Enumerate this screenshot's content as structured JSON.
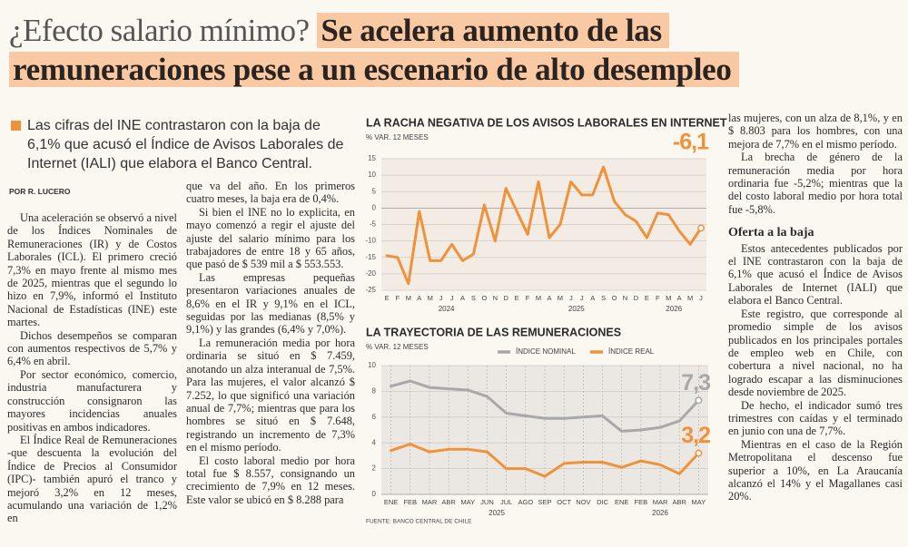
{
  "header": {
    "kicker": "¿Efecto salario mínimo?",
    "headline_lines": [
      "Se acelera aumento de las",
      "remuneraciones pese a un escenario de alto desempleo"
    ]
  },
  "lead": "Las cifras del INE contrastaron con la baja de 6,1% que acusó el Índice de Avisos Laborales de Internet (IALI) que elabora el Banco Central.",
  "byline": "POR R. LUCERO",
  "article": {
    "column_1": [
      "Una aceleración se observó a nivel de los Índices Nominales de Remuneraciones (IR) y de Costos Laborales (ICL). El primero creció 7,3% en mayo frente al mismo mes de 2025, mientras que el segundo lo hizo en 7,9%, informó el Instituto Nacional de Estadísticas (INE) este martes.",
      "Dichos desempeños se comparan con aumentos respectivos de 5,7% y 6,4% en abril.",
      "Por sector económico, comercio, industria manufacturera y construcción consignaron las mayores incidencias anuales positivas en ambos indicadores.",
      "El Índice Real de Remuneraciones -que descuenta la evolución del Índice de Precios al Consumidor (IPC)- también apuró el tranco y mejoró 3,2% en 12 meses, acumulando una variación de 1,2% en"
    ],
    "column_2": [
      "que va del año. En los primeros cuatro meses, la baja era de 0,4%.",
      "Si bien el INE no lo explicita, en mayo comenzó a regir el ajuste del ajuste del salario mínimo para los trabajadores de entre 18 y 65 años, que pasó de $ 539 mil a $ 553.553.",
      "Las empresas pequeñas presentaron variaciones anuales de 8,6% en el IR y 9,1% en el ICL, seguidas por las medianas (8,5% y 9,1%) y las grandes (6,4% y 7,0%).",
      "La remuneración media por hora ordinaria se situó en $ 7.459, anotando un alza interanual de 7,5%. Para las mujeres, el valor alcanzó $ 7.252, lo que significó una variación anual de 7,7%; mientras que para los hombres se situó en $ 7.648, registrando un incremento de 7,3% en el mismo período.",
      "El costo laboral medio por hora total fue $ 8.557, consignando un crecimiento de 7,9% en 12 meses. Este valor se ubicó en $ 8.288 para"
    ],
    "column_3": [
      "las mujeres, con un alza de 8,1%, y en $ 8.803 para los hombres, con una mejora de 7,7% en el mismo período.",
      "La brecha de género de la remuneración media por hora ordinaria fue -5,2%; mientras que la del costo laboral medio por hora total fue -5,8%."
    ],
    "subheading": "Oferta a la baja",
    "column_3_after": [
      "Estos antecedentes publicados por el INE contrastaron con la baja de 6,1% que acusó el Índice de Avisos Laborales de Internet (IALI) que elabora el Banco Central.",
      "Este registro, que corresponde al promedio simple de los avisos publicados en los principales portales de empleo web en Chile, con cobertura a nivel nacional, no ha logrado escapar a las disminuciones desde noviembre de 2025.",
      "De hecho, el indicador sumó tres trimestres con caídas y el terminado en junio con una de 7,7%.",
      "Mientras en el caso de la Región Metropolitana el descenso fue superior a 10%, en La Araucanía alcanzó el 14% y el Magallanes casi 20%."
    ]
  },
  "chart_data": [
    {
      "type": "line",
      "title": "LA RACHA NEGATIVA DE LOS AVISOS LABORALES EN INTERNET",
      "y_label": "% VAR. 12 MESES",
      "categories": [
        "E",
        "F",
        "M",
        "A",
        "M",
        "J",
        "J",
        "A",
        "S",
        "O",
        "N",
        "D",
        "E",
        "F",
        "M",
        "A",
        "M",
        "J",
        "J",
        "A",
        "S",
        "O",
        "N",
        "D",
        "E",
        "F",
        "M",
        "A",
        "M",
        "J"
      ],
      "x_group_labels": [
        "2024",
        "2025",
        "2026"
      ],
      "values": [
        -14.5,
        -15,
        -23,
        -1,
        -16,
        -16,
        -11,
        -16,
        -14,
        1,
        -10,
        6,
        -1,
        -8,
        8,
        -9,
        -5,
        8,
        4,
        4,
        12.5,
        2,
        -2,
        -4,
        -9,
        -1.5,
        -2,
        -7,
        -11,
        -6.1
      ],
      "value_labels": [
        null,
        null,
        null,
        null,
        null,
        null,
        null,
        null,
        null,
        null,
        null,
        null,
        null,
        null,
        null,
        null,
        null,
        null,
        null,
        null,
        null,
        null,
        null,
        null,
        null,
        null,
        null,
        null,
        null,
        "-6,1"
      ],
      "color": "#f0923a",
      "ylim": [
        -25,
        15
      ],
      "yticks": [
        -25,
        -20,
        -15,
        -10,
        -5,
        0,
        5,
        10,
        15
      ],
      "grid": true
    },
    {
      "type": "line",
      "title": "LA TRAYECTORIA DE LAS REMUNERACIONES",
      "y_label": "% VAR. 12 MESES",
      "categories": [
        "ENE",
        "FEB",
        "MAR",
        "ABR",
        "MAY",
        "JUN",
        "JUL",
        "AGO",
        "SEP",
        "OCT",
        "NOV",
        "DIC",
        "ENE",
        "FEB",
        "MAR",
        "ABR",
        "MAY"
      ],
      "x_group_labels": [
        "2025",
        "2026"
      ],
      "series": [
        {
          "name": "ÍNDICE NOMINAL",
          "color": "#a8a8a8",
          "values": [
            8.4,
            8.8,
            8.3,
            8.2,
            8.1,
            7.6,
            6.3,
            6.1,
            5.9,
            5.9,
            6.0,
            6.1,
            4.9,
            5.0,
            5.2,
            5.7,
            7.3
          ],
          "value_labels": [
            null,
            null,
            null,
            null,
            null,
            null,
            null,
            null,
            null,
            null,
            null,
            null,
            null,
            null,
            null,
            null,
            "7,3"
          ]
        },
        {
          "name": "ÍNDICE REAL",
          "color": "#f0923a",
          "values": [
            3.4,
            3.9,
            3.3,
            3.5,
            3.5,
            3.3,
            2.0,
            2.0,
            1.4,
            2.4,
            2.5,
            2.5,
            2.1,
            2.6,
            2.3,
            1.6,
            3.2
          ],
          "value_labels": [
            null,
            null,
            null,
            null,
            null,
            null,
            null,
            null,
            null,
            null,
            null,
            null,
            null,
            null,
            null,
            null,
            "3,2"
          ]
        }
      ],
      "ylim": [
        0,
        10
      ],
      "yticks": [
        0,
        2,
        4,
        6,
        8,
        10
      ],
      "grid": true,
      "source": "FUENTE: BANCO CENTRAL DE CHILE"
    }
  ]
}
